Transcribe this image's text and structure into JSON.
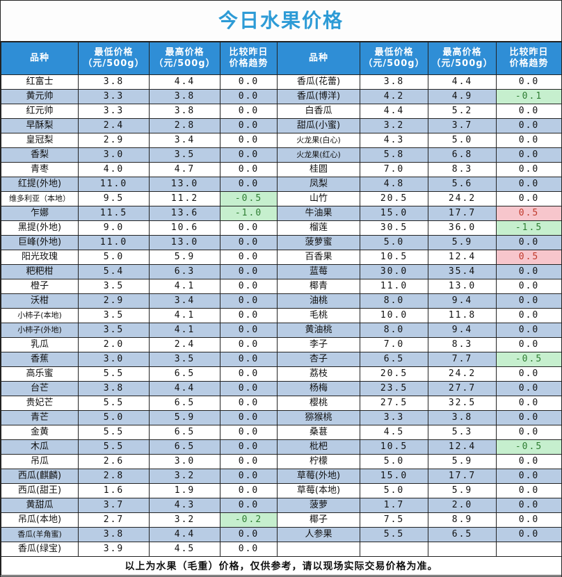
{
  "title": "今日水果价格",
  "headers": {
    "name": "品种",
    "min": [
      "最低价格",
      "（元/500g）"
    ],
    "max": [
      "最高价格",
      "（元/500g）"
    ],
    "trend": [
      "比较昨日",
      "价格趋势"
    ]
  },
  "colors": {
    "header": "#2f8ed6",
    "title": "#2d9bd6",
    "shaded": "#b8cce4",
    "up": "#f7c6cc",
    "down": "#c6efce"
  },
  "rows": [
    {
      "shade": false,
      "l": [
        "红富士",
        "3.8",
        "4.4",
        "0.0",
        ""
      ],
      "r": [
        "香瓜(花蕾)",
        "3.8",
        "4.4",
        "0.0",
        ""
      ]
    },
    {
      "shade": true,
      "l": [
        "黄元帅",
        "3.3",
        "3.8",
        "0.0",
        ""
      ],
      "r": [
        "香瓜(博洋)",
        "4.2",
        "4.9",
        "-0.1",
        "down"
      ]
    },
    {
      "shade": false,
      "l": [
        "红元帅",
        "3.3",
        "3.8",
        "0.0",
        ""
      ],
      "r": [
        "白香瓜",
        "4.4",
        "5.2",
        "0.0",
        ""
      ]
    },
    {
      "shade": true,
      "l": [
        "早酥梨",
        "2.4",
        "2.8",
        "0.0",
        ""
      ],
      "r": [
        "甜瓜(小蜜)",
        "3.2",
        "3.7",
        "0.0",
        ""
      ]
    },
    {
      "shade": false,
      "l": [
        "皇冠梨",
        "2.9",
        "3.4",
        "0.0",
        ""
      ],
      "r": [
        "火龙果(白心)",
        "4.3",
        "5.0",
        "0.0",
        ""
      ]
    },
    {
      "shade": true,
      "l": [
        "香梨",
        "3.0",
        "3.5",
        "0.0",
        ""
      ],
      "r": [
        "火龙果(红心)",
        "5.8",
        "6.8",
        "0.0",
        ""
      ]
    },
    {
      "shade": false,
      "l": [
        "青枣",
        "4.0",
        "4.7",
        "0.0",
        ""
      ],
      "r": [
        "桂圆",
        "7.0",
        "8.3",
        "0.0",
        ""
      ]
    },
    {
      "shade": true,
      "l": [
        "红提(外地)",
        "11.0",
        "13.0",
        "0.0",
        ""
      ],
      "r": [
        "凤梨",
        "4.8",
        "5.6",
        "0.0",
        ""
      ]
    },
    {
      "shade": false,
      "l": [
        "维多利亚（本地）",
        "9.5",
        "11.2",
        "-0.5",
        "down"
      ],
      "r": [
        "山竹",
        "20.5",
        "24.2",
        "0.0",
        ""
      ]
    },
    {
      "shade": true,
      "l": [
        "乍娜",
        "11.5",
        "13.6",
        "-1.0",
        "down"
      ],
      "r": [
        "牛油果",
        "15.0",
        "17.7",
        "0.5",
        "up"
      ]
    },
    {
      "shade": false,
      "l": [
        "黑提(外地)",
        "9.0",
        "10.6",
        "0.0",
        ""
      ],
      "r": [
        "榴莲",
        "30.5",
        "36.0",
        "-1.5",
        "down"
      ]
    },
    {
      "shade": true,
      "l": [
        "巨峰(外地)",
        "11.0",
        "13.0",
        "0.0",
        ""
      ],
      "r": [
        "菠萝蜜",
        "5.0",
        "5.9",
        "0.0",
        ""
      ]
    },
    {
      "shade": false,
      "l": [
        "阳光玫瑰",
        "5.0",
        "5.9",
        "0.0",
        ""
      ],
      "r": [
        "百香果",
        "10.5",
        "12.4",
        "0.5",
        "up"
      ]
    },
    {
      "shade": true,
      "l": [
        "粑粑柑",
        "5.4",
        "6.3",
        "0.0",
        ""
      ],
      "r": [
        "蓝莓",
        "30.0",
        "35.4",
        "0.0",
        ""
      ]
    },
    {
      "shade": false,
      "l": [
        "橙子",
        "3.5",
        "4.1",
        "0.0",
        ""
      ],
      "r": [
        "椰青",
        "11.0",
        "13.0",
        "0.0",
        ""
      ]
    },
    {
      "shade": true,
      "l": [
        "沃柑",
        "2.9",
        "3.4",
        "0.0",
        ""
      ],
      "r": [
        "油桃",
        "8.0",
        "9.4",
        "0.0",
        ""
      ]
    },
    {
      "shade": false,
      "l": [
        "小柿子(本地)",
        "3.5",
        "4.1",
        "0.0",
        ""
      ],
      "r": [
        "毛桃",
        "10.0",
        "11.8",
        "0.0",
        ""
      ]
    },
    {
      "shade": true,
      "l": [
        "小柿子(外地)",
        "3.5",
        "4.1",
        "0.0",
        ""
      ],
      "r": [
        "黄油桃",
        "8.0",
        "9.4",
        "0.0",
        ""
      ]
    },
    {
      "shade": false,
      "l": [
        "乳瓜",
        "2.0",
        "2.4",
        "0.0",
        ""
      ],
      "r": [
        "李子",
        "7.0",
        "8.3",
        "0.0",
        ""
      ]
    },
    {
      "shade": true,
      "l": [
        "香蕉",
        "3.0",
        "3.5",
        "0.0",
        ""
      ],
      "r": [
        "杏子",
        "6.5",
        "7.7",
        "-0.5",
        "down"
      ]
    },
    {
      "shade": false,
      "l": [
        "高乐蜜",
        "5.5",
        "6.5",
        "0.0",
        ""
      ],
      "r": [
        "荔枝",
        "20.5",
        "24.2",
        "0.0",
        ""
      ]
    },
    {
      "shade": true,
      "l": [
        "台芒",
        "3.8",
        "4.4",
        "0.0",
        ""
      ],
      "r": [
        "杨梅",
        "23.5",
        "27.7",
        "0.0",
        ""
      ]
    },
    {
      "shade": false,
      "l": [
        "贵妃芒",
        "5.5",
        "6.5",
        "0.0",
        ""
      ],
      "r": [
        "樱桃",
        "27.5",
        "32.5",
        "0.0",
        ""
      ]
    },
    {
      "shade": true,
      "l": [
        "青芒",
        "5.0",
        "5.9",
        "0.0",
        ""
      ],
      "r": [
        "猕猴桃",
        "3.3",
        "3.8",
        "0.0",
        ""
      ]
    },
    {
      "shade": false,
      "l": [
        "金黄",
        "5.5",
        "6.5",
        "0.0",
        ""
      ],
      "r": [
        "桑葚",
        "4.5",
        "5.3",
        "0.0",
        ""
      ]
    },
    {
      "shade": true,
      "l": [
        "木瓜",
        "5.5",
        "6.5",
        "0.0",
        ""
      ],
      "r": [
        "枇杷",
        "10.5",
        "12.4",
        "-0.5",
        "down"
      ]
    },
    {
      "shade": false,
      "l": [
        "吊瓜",
        "2.6",
        "3.0",
        "0.0",
        ""
      ],
      "r": [
        "柠檬",
        "5.0",
        "5.9",
        "0.0",
        ""
      ]
    },
    {
      "shade": true,
      "l": [
        "西瓜(麒麟)",
        "2.8",
        "3.2",
        "0.0",
        ""
      ],
      "r": [
        "草莓(外地)",
        "15.0",
        "17.7",
        "0.0",
        ""
      ]
    },
    {
      "shade": false,
      "l": [
        "西瓜(甜王)",
        "1.6",
        "1.9",
        "0.0",
        ""
      ],
      "r": [
        "草莓(本地)",
        "5.0",
        "5.9",
        "0.0",
        ""
      ]
    },
    {
      "shade": true,
      "l": [
        "黄甜瓜",
        "3.7",
        "4.3",
        "0.0",
        ""
      ],
      "r": [
        "菠萝",
        "1.7",
        "2.0",
        "0.0",
        ""
      ]
    },
    {
      "shade": false,
      "l": [
        "吊瓜(本地)",
        "2.7",
        "3.2",
        "-0.2",
        "down"
      ],
      "r": [
        "椰子",
        "7.5",
        "8.9",
        "0.0",
        ""
      ]
    },
    {
      "shade": true,
      "l": [
        "香瓜(羊角蜜)",
        "3.8",
        "4.4",
        "0.0",
        ""
      ],
      "r": [
        "人参果",
        "5.5",
        "6.5",
        "0.0",
        ""
      ]
    },
    {
      "shade": false,
      "l": [
        "香瓜(绿宝)",
        "3.9",
        "4.5",
        "0.0",
        ""
      ],
      "r": [
        "",
        "",
        "",
        "",
        ""
      ]
    }
  ],
  "footer": "以上为水果（毛重）价格，仅供参考，请以现场实际交易价格为准。"
}
